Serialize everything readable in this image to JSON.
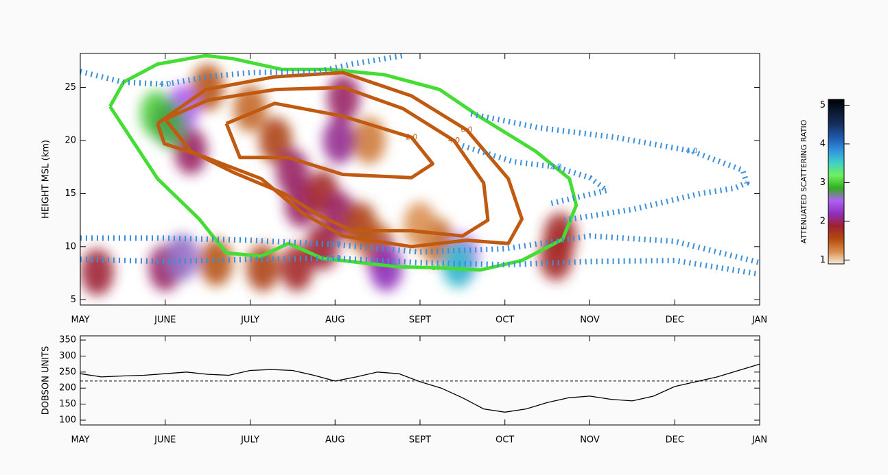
{
  "chart_data": [
    {
      "type": "contour",
      "ylabel": "HEIGHT MSL (km)",
      "xlim": [
        0,
        8
      ],
      "ylim": [
        4.5,
        28.2
      ],
      "xticks": [
        {
          "value": 0,
          "label": "MAY"
        },
        {
          "value": 1,
          "label": "JUNE"
        },
        {
          "value": 2,
          "label": "JULY"
        },
        {
          "value": 3,
          "label": "AUG"
        },
        {
          "value": 4,
          "label": "SEPT"
        },
        {
          "value": 5,
          "label": "OCT"
        },
        {
          "value": 6,
          "label": "NOV"
        },
        {
          "value": 7,
          "label": "DEC"
        },
        {
          "value": 8,
          "label": "JAN"
        }
      ],
      "yticks": [
        5,
        10,
        15,
        20,
        25
      ],
      "heatmap": {
        "x": [
          0.2,
          1.5,
          2.0,
          3.4,
          4.2,
          4.0,
          1.3,
          1.0,
          1.6,
          2.15,
          2.55,
          2.3,
          2.5,
          2.6,
          2.85,
          2.85,
          3.05,
          3.05,
          3.1,
          3.3,
          3.5,
          3.6,
          4.5,
          5.6,
          5.65,
          1.2,
          1.2,
          0.9,
          1.05,
          4.45
        ],
        "y": [
          7.6,
          25,
          23,
          20,
          10.5,
          12,
          19,
          8,
          8.5,
          8,
          8,
          20,
          17,
          14,
          15,
          10,
          13,
          20,
          24,
          12,
          10,
          8,
          9,
          9,
          11,
          23,
          9,
          22.5,
          21.5,
          8.3
        ],
        "values": [
          1.9,
          1.5,
          1.4,
          1.3,
          1.4,
          1.2,
          2.0,
          2.0,
          1.5,
          1.6,
          1.8,
          1.6,
          2.0,
          2.0,
          1.8,
          1.9,
          2.0,
          2.1,
          2.0,
          1.6,
          1.5,
          2.2,
          2.5,
          1.8,
          1.8,
          2.5,
          2.6,
          3.0,
          2.8,
          3.6
        ]
      },
      "contours": [
        {
          "label": "10.0",
          "color": "#44dd33",
          "dashed": false,
          "x": [
            0.35,
            0.91,
            1.4,
            1.72,
            2.13,
            2.45,
            2.85,
            3.74,
            4.23,
            4.71,
            5.2,
            5.68,
            5.84,
            5.76,
            5.36,
            4.71,
            4.23,
            3.58,
            2.93,
            2.37,
            1.8,
            1.48,
            0.91,
            0.51,
            0.35
          ],
          "y": [
            23.2,
            16.4,
            12.6,
            9.4,
            9.1,
            10.3,
            8.9,
            8.1,
            8.0,
            7.8,
            8.7,
            10.7,
            13.9,
            16.4,
            19,
            22.2,
            24.8,
            26.2,
            26.7,
            26.7,
            27.7,
            28.0,
            27.2,
            25.5,
            23.2
          ]
        },
        {
          "label": "6.0",
          "color": "#c05a10",
          "dashed": false,
          "x": [
            0.91,
            1.48,
            2.29,
            3.09,
            3.9,
            4.55,
            5.04,
            5.2,
            5.04,
            4.55,
            3.9,
            3.09,
            2.61,
            2.13,
            1.48,
            0.99,
            0.91
          ],
          "y": [
            21.6,
            24.8,
            26.0,
            26.4,
            24.2,
            21.0,
            16.4,
            12.6,
            10.3,
            10.6,
            10.0,
            11.0,
            13.2,
            16.4,
            18.4,
            19.7,
            21.6
          ]
        },
        {
          "label": "4.0",
          "color": "#c05a10",
          "dashed": false,
          "x": [
            1.0,
            1.5,
            2.3,
            3.1,
            3.8,
            4.4,
            4.75,
            4.8,
            4.5,
            3.9,
            3.2,
            2.8,
            2.4,
            1.8,
            1.3,
            1.0
          ],
          "y": [
            22.0,
            23.8,
            24.8,
            25.0,
            23.0,
            20.0,
            16.0,
            12.5,
            11.0,
            11.5,
            11.5,
            13.0,
            15.0,
            17.0,
            19.0,
            22.0
          ]
        },
        {
          "label": "2.0",
          "color": "#c05a10",
          "dashed": false,
          "x": [
            1.72,
            2.29,
            3.09,
            3.9,
            4.15,
            3.9,
            3.09,
            2.45,
            1.88,
            1.72
          ],
          "y": [
            21.6,
            23.5,
            22.3,
            20.3,
            17.8,
            16.5,
            16.8,
            18.4,
            18.4,
            21.6
          ]
        },
        {
          "label": "1.0",
          "color": "#3a8fd8",
          "dashed": true,
          "x": [
            0,
            1,
            2,
            3,
            4,
            5,
            6,
            7,
            8
          ],
          "y": [
            10.8,
            10.8,
            10.6,
            10.2,
            9.5,
            9.8,
            11,
            10.5,
            8.5
          ]
        },
        {
          "label": "2.0",
          "color": "#3a8fd8",
          "dashed": true,
          "x": [
            0,
            1,
            2,
            3,
            4,
            5,
            6,
            7,
            8
          ],
          "y": [
            8.8,
            8.6,
            8.8,
            8.9,
            8.5,
            8.3,
            8.6,
            8.7,
            7.4
          ]
        },
        {
          "label": "4.0",
          "color": "#3a8fd8",
          "dashed": true,
          "x": [
            0,
            0.5,
            1,
            1.5,
            2,
            2.8,
            3.2,
            3.8
          ],
          "y": [
            26.5,
            25.5,
            25.3,
            26,
            26.4,
            26.5,
            27.2,
            28
          ]
        },
        {
          "label": "4.0",
          "color": "#3a8fd8",
          "dashed": true,
          "x": [
            4.6,
            5.4,
            6.3,
            7.2,
            7.8,
            7.85,
            7.7,
            7.3,
            6.5,
            5.7
          ],
          "y": [
            22.5,
            21.2,
            20.3,
            19,
            17.2,
            16,
            15.5,
            15,
            13.5,
            12.5
          ]
        },
        {
          "label": "2.0",
          "color": "#3a8fd8",
          "dashed": true,
          "x": [
            4.5,
            5.1,
            5.6,
            6.0,
            6.2,
            5.5
          ],
          "y": [
            19.5,
            18,
            17.5,
            16.5,
            15.3,
            14
          ]
        }
      ],
      "colorbar": {
        "label": "ATTENUATED SCATTERING RATIO",
        "lim": [
          0.9,
          5.15
        ],
        "ticks": [
          1,
          2,
          3,
          4,
          5
        ],
        "colors": [
          "#f6ead8",
          "#d88a48",
          "#b04a10",
          "#a02030",
          "#9030c0",
          "#b060f0",
          "#30b020",
          "#70f060",
          "#40d0c8",
          "#3090e0",
          "#2058a8",
          "#163060",
          "#0a1a30",
          "#000008"
        ]
      }
    },
    {
      "type": "line",
      "ylabel": "DOBSON UNITS",
      "xlim": [
        0,
        8
      ],
      "ylim": [
        85,
        363
      ],
      "xticks": [
        {
          "value": 0,
          "label": "MAY"
        },
        {
          "value": 1,
          "label": "JUNE"
        },
        {
          "value": 2,
          "label": "JULY"
        },
        {
          "value": 3,
          "label": "AUG"
        },
        {
          "value": 4,
          "label": "SEPT"
        },
        {
          "value": 5,
          "label": "OCT"
        },
        {
          "value": 6,
          "label": "NOV"
        },
        {
          "value": 7,
          "label": "DEC"
        },
        {
          "value": 8,
          "label": "JAN"
        }
      ],
      "yticks": [
        100,
        150,
        200,
        250,
        300,
        350
      ],
      "hline": 222,
      "color": "#000000",
      "x": [
        0,
        0.25,
        0.5,
        0.75,
        1,
        1.25,
        1.5,
        1.75,
        2,
        2.25,
        2.5,
        2.75,
        3,
        3.25,
        3.5,
        3.75,
        4,
        4.25,
        4.5,
        4.75,
        5,
        5.25,
        5.5,
        5.75,
        6,
        6.25,
        6.5,
        6.75,
        7,
        7.25,
        7.5,
        7.75,
        8
      ],
      "values": [
        245,
        235,
        238,
        240,
        245,
        250,
        243,
        240,
        255,
        258,
        255,
        240,
        222,
        235,
        250,
        245,
        220,
        200,
        170,
        135,
        125,
        135,
        155,
        170,
        175,
        165,
        160,
        175,
        205,
        220,
        235,
        255,
        275
      ]
    }
  ]
}
